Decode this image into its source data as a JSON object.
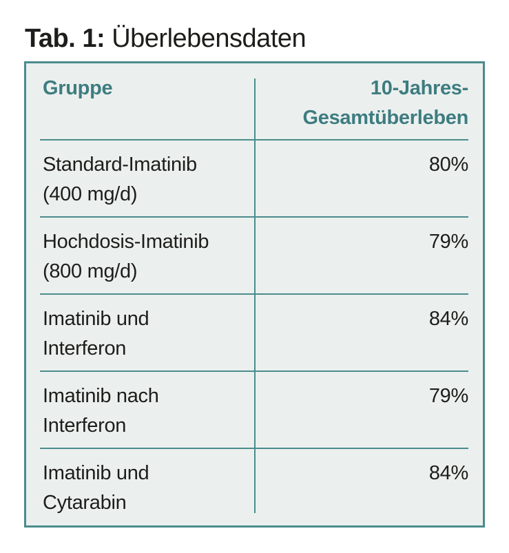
{
  "caption": {
    "label": "Tab. 1:",
    "text": "Überlebensdaten"
  },
  "table": {
    "columns": {
      "group_header": "Gruppe",
      "value_header_line1": "10-Jahres-",
      "value_header_line2": "Gesamtüberleben"
    },
    "rows": [
      {
        "group_line1": "Standard-Imatinib",
        "group_line2": "(400 mg/d)",
        "value": "80%"
      },
      {
        "group_line1": "Hochdosis-Imatinib",
        "group_line2": "(800 mg/d)",
        "value": "79%"
      },
      {
        "group_line1": "Imatinib und",
        "group_line2": "Interferon",
        "value": "84%"
      },
      {
        "group_line1": "Imatinib nach",
        "group_line2": "Interferon",
        "value": "79%"
      },
      {
        "group_line1": "Imatinib und",
        "group_line2": "Cytarabin",
        "value": "84%"
      }
    ]
  },
  "colors": {
    "accent_teal": "#4a8b8b",
    "header_text_teal": "#3e7c80",
    "table_background": "#ebf0ee",
    "body_text": "#1d1d1b",
    "page_background": "#ffffff"
  }
}
